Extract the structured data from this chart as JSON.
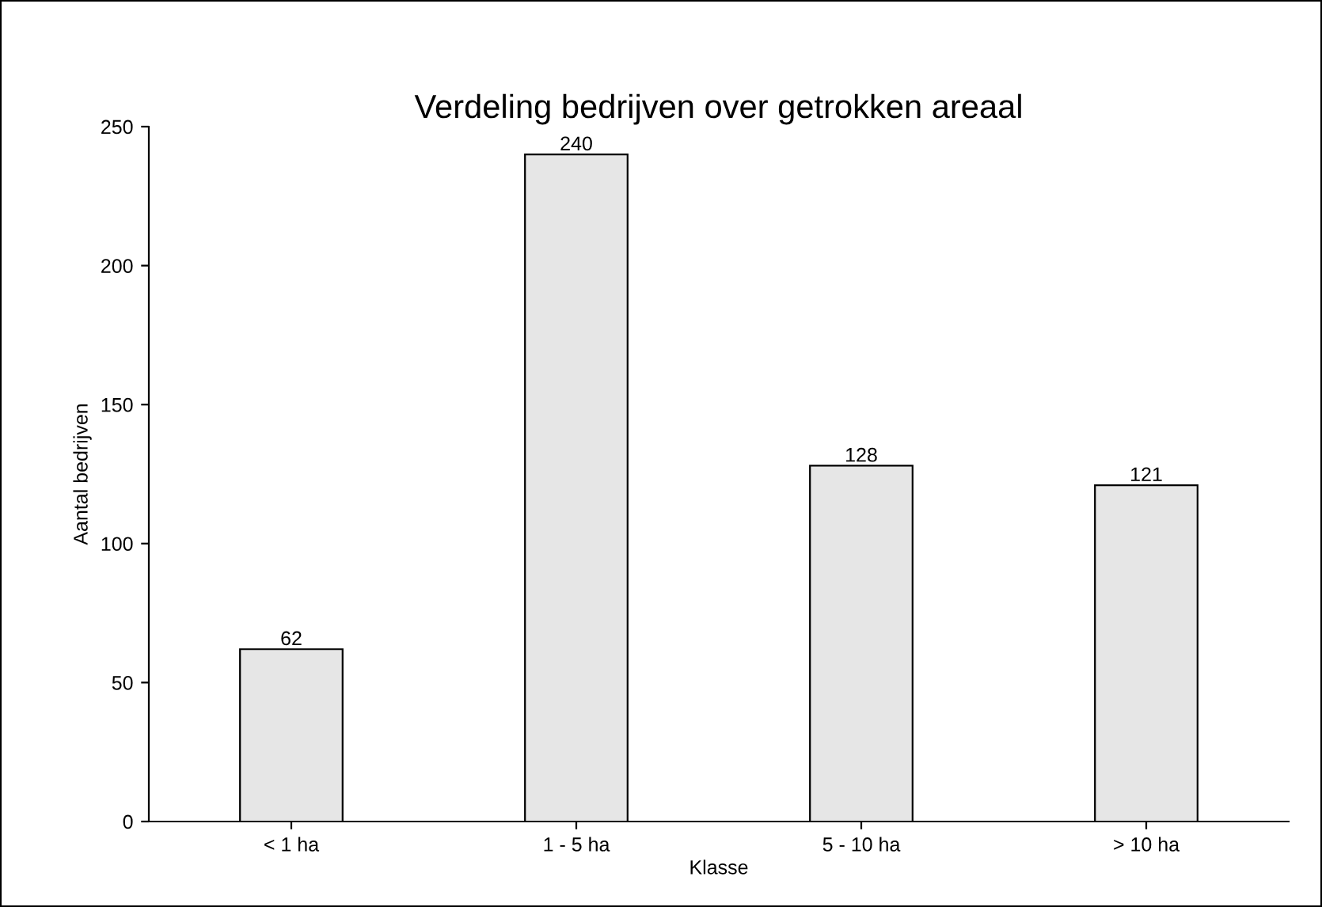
{
  "chart_data": {
    "type": "bar",
    "title": "Verdeling bedrijven over getrokken areaal",
    "xlabel": "Klasse",
    "ylabel": "Aantal bedrijven",
    "categories": [
      "< 1 ha",
      "1 - 5 ha",
      "5 - 10 ha",
      "> 10 ha"
    ],
    "series": [
      {
        "color": "#e6e6e6",
        "values": [
          62,
          240,
          128,
          121
        ]
      }
    ],
    "ylim": [
      0,
      250
    ],
    "yticks": [
      0,
      50,
      100,
      150,
      200,
      250
    ],
    "grid": false,
    "legend": false,
    "data_labels": true
  }
}
